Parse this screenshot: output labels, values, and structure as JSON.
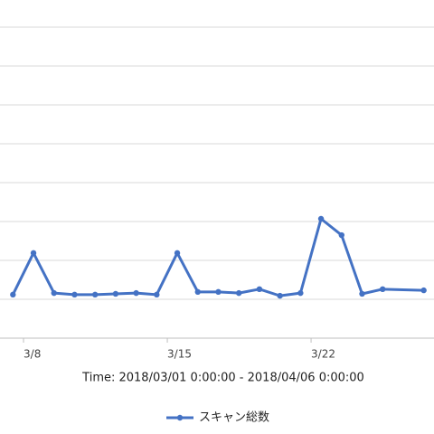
{
  "chart_data": {
    "type": "line",
    "x_label": "Time: 2018/03/01  0:00:00 - 2018/04/06  0:00:00",
    "x": [
      7,
      8,
      9,
      10,
      11,
      12,
      13,
      14,
      15,
      16,
      17,
      18,
      19,
      20,
      21,
      22,
      23,
      24,
      25,
      27
    ],
    "series": [
      {
        "name": "スキャン総数",
        "color": "#4472c4",
        "values": [
          1.12,
          2.19,
          1.16,
          1.12,
          1.12,
          1.14,
          1.16,
          1.12,
          2.19,
          1.19,
          1.19,
          1.16,
          1.26,
          1.09,
          1.16,
          3.07,
          2.65,
          1.14,
          1.26,
          1.23
        ]
      }
    ],
    "xlim": [
      6.37,
      27.5
    ],
    "xticks": [
      {
        "value": 8,
        "label": "3/8"
      },
      {
        "value": 15,
        "label": "3/15"
      },
      {
        "value": 22,
        "label": "3/22"
      }
    ],
    "ylim": [
      0,
      8
    ],
    "yticks": [
      0,
      1,
      2,
      3,
      4,
      5,
      6,
      7,
      8
    ],
    "grid": true
  }
}
